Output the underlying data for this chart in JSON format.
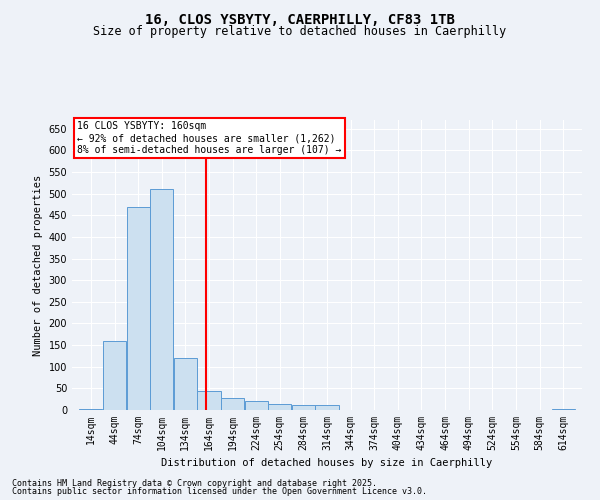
{
  "title": "16, CLOS YSBYTY, CAERPHILLY, CF83 1TB",
  "subtitle": "Size of property relative to detached houses in Caerphilly",
  "xlabel": "Distribution of detached houses by size in Caerphilly",
  "ylabel": "Number of detached properties",
  "footnote1": "Contains HM Land Registry data © Crown copyright and database right 2025.",
  "footnote2": "Contains public sector information licensed under the Open Government Licence v3.0.",
  "annotation_title": "16 CLOS YSBYTY: 160sqm",
  "annotation_line1": "← 92% of detached houses are smaller (1,262)",
  "annotation_line2": "8% of semi-detached houses are larger (107) →",
  "bar_color": "#cce0f0",
  "bar_edge_color": "#5b9bd5",
  "vline_color": "red",
  "vline_x": 160,
  "categories": [
    14,
    44,
    74,
    104,
    134,
    164,
    194,
    224,
    254,
    284,
    314,
    344,
    374,
    404,
    434,
    464,
    494,
    524,
    554,
    584,
    614
  ],
  "values": [
    3,
    160,
    470,
    510,
    120,
    45,
    28,
    20,
    14,
    12,
    12,
    0,
    0,
    0,
    0,
    0,
    0,
    0,
    0,
    0,
    3
  ],
  "ylim": [
    0,
    670
  ],
  "yticks": [
    0,
    50,
    100,
    150,
    200,
    250,
    300,
    350,
    400,
    450,
    500,
    550,
    600,
    650
  ],
  "bin_width": 30,
  "background_color": "#eef2f8",
  "grid_color": "#ffffff",
  "title_fontsize": 10,
  "subtitle_fontsize": 8.5,
  "tick_fontsize": 7,
  "ylabel_fontsize": 7.5,
  "xlabel_fontsize": 7.5,
  "footnote_fontsize": 6,
  "annot_fontsize": 7
}
